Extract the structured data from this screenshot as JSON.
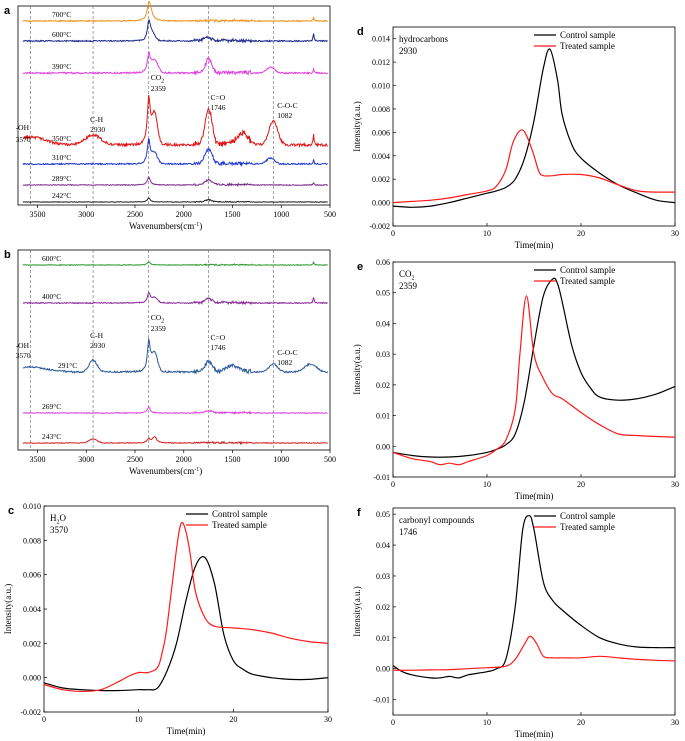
{
  "chart_data": [
    {
      "id": "a",
      "type": "line",
      "panel_label": "a",
      "xlabel": "Wavenumbers(cm",
      "xlabel_sup": "-1",
      "xlabel_end": ")",
      "xlim": [
        3700,
        500
      ],
      "xticks": [
        3500,
        3000,
        2500,
        2000,
        1500,
        1000,
        500
      ],
      "dashed_lines": [
        3570,
        2930,
        2359,
        1746,
        1082
      ],
      "series": [
        {
          "name": "700°C",
          "color": "#f39019"
        },
        {
          "name": "600°C",
          "color": "#1f2a8c"
        },
        {
          "name": "390°C",
          "color": "#e03de0"
        },
        {
          "name": "350°C",
          "color": "#e11414"
        },
        {
          "name": "310°C",
          "color": "#1f3ad0"
        },
        {
          "name": "289°C",
          "color": "#7a2a8c"
        },
        {
          "name": "242°C",
          "color": "#222222"
        }
      ],
      "annotations": [
        {
          "line1": "-OH",
          "line2": "3570"
        },
        {
          "line1": "C-H",
          "line2": "2930"
        },
        {
          "line1": "CO",
          "sub": "2",
          "line2": "2359"
        },
        {
          "line1": "C=O",
          "line2": "1746"
        },
        {
          "line1": "C-O-C",
          "line2": "1082"
        }
      ]
    },
    {
      "id": "b",
      "type": "line",
      "panel_label": "b",
      "xlabel": "Wavenumbers(cm",
      "xlabel_sup": "-1",
      "xlabel_end": ")",
      "xlim": [
        3700,
        500
      ],
      "xticks": [
        3500,
        3000,
        2500,
        2000,
        1500,
        1000,
        500
      ],
      "dashed_lines": [
        3570,
        2930,
        2359,
        1746,
        1082
      ],
      "series": [
        {
          "name": "600°C",
          "color": "#2a9a2a"
        },
        {
          "name": "400°C",
          "color": "#8a2a9a"
        },
        {
          "name": "291°C",
          "color": "#2a5a9a"
        },
        {
          "name": "269°C",
          "color": "#e03de0"
        },
        {
          "name": "243°C",
          "color": "#d02020"
        }
      ],
      "annotations": [
        {
          "line1": "-OH",
          "line2": "3570"
        },
        {
          "line1": "C-H",
          "line2": "2930"
        },
        {
          "line1": "CO",
          "sub": "2",
          "line2": "2359"
        },
        {
          "line1": "C=O",
          "line2": "1746"
        },
        {
          "line1": "C-O-C",
          "line2": "1082"
        }
      ]
    },
    {
      "id": "c",
      "type": "line",
      "panel_label": "c",
      "title_main": "H",
      "title_sub": "2",
      "title_end": "O",
      "title_num": "3570",
      "xlabel": "Time(min)",
      "ylabel": "Intensity(a.u.)",
      "xlim": [
        0,
        30
      ],
      "ylim": [
        -0.002,
        0.01
      ],
      "xticks": [
        0,
        10,
        20,
        30
      ],
      "yticks": [
        -0.002,
        0.0,
        0.002,
        0.004,
        0.006,
        0.008,
        0.01
      ],
      "ytick_labels": [
        "-0.002",
        "0.000",
        "0.002",
        "0.004",
        "0.006",
        "0.008",
        "0.010"
      ],
      "series": [
        {
          "name": "Control sample",
          "color": "#000000",
          "x": [
            0,
            2,
            4,
            6,
            8,
            10,
            11,
            12,
            13,
            14,
            15,
            16,
            17,
            18,
            19,
            20,
            21,
            22,
            24,
            26,
            28,
            30
          ],
          "y": [
            -0.0003,
            -0.0006,
            -0.0007,
            -0.00075,
            -0.00075,
            -0.0007,
            -0.0007,
            -0.0006,
            0.0004,
            0.002,
            0.0045,
            0.0065,
            0.007,
            0.0055,
            0.0025,
            0.001,
            0.0005,
            0.0002,
            0.0,
            -0.0001,
            -0.0001,
            0.0
          ]
        },
        {
          "name": "Treated sample",
          "color": "#ff1a1a",
          "x": [
            0,
            2,
            4,
            6,
            8,
            9,
            10,
            11,
            12,
            12.5,
            13,
            14,
            14.5,
            15,
            15.5,
            16,
            17,
            18,
            20,
            22,
            24,
            26,
            28,
            30
          ],
          "y": [
            -0.0004,
            -0.0007,
            -0.0008,
            -0.0007,
            -0.0002,
            0.0001,
            0.0003,
            0.0003,
            0.0006,
            0.0015,
            0.003,
            0.0075,
            0.009,
            0.0085,
            0.007,
            0.005,
            0.0035,
            0.003,
            0.0029,
            0.0028,
            0.0026,
            0.0023,
            0.0021,
            0.002
          ]
        }
      ]
    },
    {
      "id": "d",
      "type": "line",
      "panel_label": "d",
      "title_main": "hydrocarbons",
      "title_num": "2930",
      "xlabel": "Time(min)",
      "ylabel": "Intensity(a.u.)",
      "xlim": [
        0,
        30
      ],
      "ylim": [
        -0.002,
        0.015
      ],
      "xticks": [
        0,
        10,
        20,
        30
      ],
      "yticks": [
        -0.002,
        0.0,
        0.002,
        0.004,
        0.006,
        0.008,
        0.01,
        0.012,
        0.014
      ],
      "ytick_labels": [
        "-0.002",
        "0.000",
        "0.002",
        "0.004",
        "0.006",
        "0.008",
        "0.010",
        "0.012",
        "0.014"
      ],
      "series": [
        {
          "name": "Control sample",
          "color": "#000000",
          "x": [
            0,
            2,
            4,
            6,
            8,
            10,
            11,
            12,
            13,
            14,
            15,
            16,
            16.7,
            17.5,
            18,
            19,
            20,
            22,
            24,
            26,
            28,
            30
          ],
          "y": [
            -0.0003,
            -0.0004,
            -0.0003,
            0.0,
            0.0004,
            0.0008,
            0.001,
            0.0013,
            0.002,
            0.0038,
            0.007,
            0.0115,
            0.0131,
            0.0105,
            0.0075,
            0.005,
            0.0038,
            0.0025,
            0.0015,
            0.0008,
            0.0002,
            0.0
          ]
        },
        {
          "name": "Treated sample",
          "color": "#ff1a1a",
          "x": [
            0,
            2,
            4,
            6,
            8,
            10,
            11,
            12,
            12.8,
            13.8,
            14.8,
            15.5,
            16,
            17,
            18,
            20,
            22,
            24,
            26,
            28,
            30
          ],
          "y": [
            0.0,
            0.0001,
            0.0002,
            0.0004,
            0.0007,
            0.001,
            0.0014,
            0.0028,
            0.0052,
            0.0062,
            0.0045,
            0.0027,
            0.0023,
            0.0023,
            0.0024,
            0.0024,
            0.0021,
            0.0015,
            0.001,
            0.0009,
            0.0009
          ]
        }
      ]
    },
    {
      "id": "e",
      "type": "line",
      "panel_label": "e",
      "title_main": "CO",
      "title_sub": "2",
      "title_num": "2359",
      "xlabel": "Time(min)",
      "ylabel": "Intensity(a.u.)",
      "xlim": [
        0,
        30
      ],
      "ylim": [
        -0.01,
        0.06
      ],
      "xticks": [
        0,
        10,
        20,
        30
      ],
      "yticks": [
        -0.01,
        0.0,
        0.01,
        0.02,
        0.03,
        0.04,
        0.05,
        0.06
      ],
      "ytick_labels": [
        "-0.01",
        "0.00",
        "0.01",
        "0.02",
        "0.03",
        "0.04",
        "0.05",
        "0.06"
      ],
      "series": [
        {
          "name": "Control sample",
          "color": "#000000",
          "x": [
            0,
            2,
            4,
            6,
            8,
            10,
            11,
            12,
            13,
            14,
            15,
            16,
            17,
            17.5,
            18,
            19,
            20,
            21,
            22,
            24,
            26,
            28,
            30
          ],
          "y": [
            -0.002,
            -0.003,
            -0.0035,
            -0.0035,
            -0.003,
            -0.002,
            -0.001,
            0.0005,
            0.004,
            0.015,
            0.033,
            0.049,
            0.0545,
            0.053,
            0.047,
            0.033,
            0.024,
            0.019,
            0.016,
            0.015,
            0.0155,
            0.017,
            0.0195
          ]
        },
        {
          "name": "Treated sample",
          "color": "#ff1a1a",
          "x": [
            0,
            2,
            4,
            5,
            6,
            7,
            8,
            10,
            11,
            12,
            13,
            13.5,
            14.2,
            15,
            16,
            17,
            18,
            20,
            22,
            24,
            26,
            28,
            30
          ],
          "y": [
            -0.002,
            -0.004,
            -0.005,
            -0.006,
            -0.0055,
            -0.006,
            -0.005,
            -0.003,
            -0.001,
            0.002,
            0.012,
            0.03,
            0.049,
            0.03,
            0.022,
            0.017,
            0.0155,
            0.011,
            0.007,
            0.004,
            0.0035,
            0.0032,
            0.003
          ]
        }
      ]
    },
    {
      "id": "f",
      "type": "line",
      "panel_label": "f",
      "title_main": "carbonyl compounds",
      "title_num": "1746",
      "xlabel": "Time(min)",
      "ylabel": "Intensity(a.u.)",
      "xlim": [
        0,
        30
      ],
      "ylim": [
        -0.015,
        0.052
      ],
      "xticks": [
        0,
        10,
        20,
        30
      ],
      "yticks": [
        -0.01,
        0.0,
        0.01,
        0.02,
        0.03,
        0.04,
        0.05
      ],
      "ytick_labels": [
        "-0.01",
        "0.00",
        "0.01",
        "0.02",
        "0.03",
        "0.04",
        "0.05"
      ],
      "series": [
        {
          "name": "Control sample",
          "color": "#000000",
          "x": [
            0,
            1,
            2,
            4,
            5,
            6,
            7,
            8,
            10,
            11,
            12,
            13,
            13.8,
            14.5,
            15,
            16,
            17,
            18,
            20,
            22,
            24,
            26,
            28,
            30
          ],
          "y": [
            0.001,
            -0.001,
            -0.002,
            -0.003,
            -0.003,
            -0.0025,
            -0.003,
            -0.002,
            -0.001,
            0.0,
            0.003,
            0.02,
            0.045,
            0.0495,
            0.045,
            0.028,
            0.022,
            0.019,
            0.014,
            0.01,
            0.008,
            0.007,
            0.0068,
            0.0068
          ]
        },
        {
          "name": "Treated sample",
          "color": "#ff1a1a",
          "x": [
            0,
            2,
            4,
            6,
            8,
            10,
            12,
            13,
            14,
            14.6,
            15.3,
            16,
            17,
            18,
            20,
            22,
            24,
            26,
            28,
            30
          ],
          "y": [
            -0.0005,
            -0.0005,
            -0.0004,
            -0.0003,
            0.0,
            0.0003,
            0.0008,
            0.003,
            0.008,
            0.0105,
            0.008,
            0.004,
            0.0035,
            0.0035,
            0.0035,
            0.004,
            0.0035,
            0.003,
            0.0027,
            0.0025
          ]
        }
      ]
    }
  ]
}
